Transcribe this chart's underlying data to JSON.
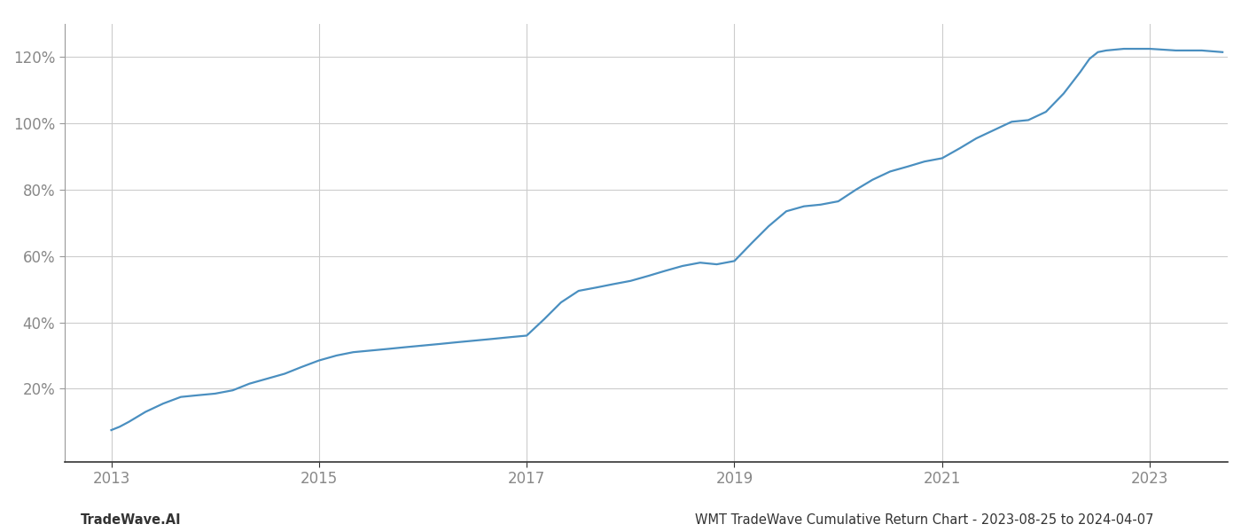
{
  "footer_left": "TradeWave.AI",
  "footer_right": "WMT TradeWave Cumulative Return Chart - 2023-08-25 to 2024-04-07",
  "line_color": "#4a8fc0",
  "line_width": 1.6,
  "background_color": "#ffffff",
  "grid_color": "#cccccc",
  "x_ticks": [
    2013,
    2015,
    2017,
    2019,
    2021,
    2023
  ],
  "y_ticks": [
    20,
    40,
    60,
    80,
    100,
    120
  ],
  "xlim": [
    2012.55,
    2023.75
  ],
  "ylim": [
    -2,
    130
  ],
  "x_data": [
    2013.0,
    2013.08,
    2013.17,
    2013.25,
    2013.33,
    2013.5,
    2013.67,
    2013.83,
    2014.0,
    2014.17,
    2014.33,
    2014.5,
    2014.67,
    2014.83,
    2015.0,
    2015.17,
    2015.33,
    2015.5,
    2015.67,
    2015.83,
    2016.0,
    2016.17,
    2016.33,
    2016.5,
    2016.67,
    2016.83,
    2017.0,
    2017.17,
    2017.33,
    2017.5,
    2017.67,
    2017.83,
    2018.0,
    2018.17,
    2018.33,
    2018.5,
    2018.67,
    2018.83,
    2019.0,
    2019.17,
    2019.33,
    2019.5,
    2019.67,
    2019.83,
    2020.0,
    2020.17,
    2020.33,
    2020.5,
    2020.67,
    2020.83,
    2021.0,
    2021.17,
    2021.33,
    2021.5,
    2021.67,
    2021.83,
    2022.0,
    2022.17,
    2022.33,
    2022.42,
    2022.5,
    2022.58,
    2022.75,
    2023.0,
    2023.25,
    2023.5,
    2023.7
  ],
  "y_data": [
    7.5,
    8.5,
    10.0,
    11.5,
    13.0,
    15.5,
    17.5,
    18.0,
    18.5,
    19.5,
    21.5,
    23.0,
    24.5,
    26.5,
    28.5,
    30.0,
    31.0,
    31.5,
    32.0,
    32.5,
    33.0,
    33.5,
    34.0,
    34.5,
    35.0,
    35.5,
    36.0,
    41.0,
    46.0,
    49.5,
    50.5,
    51.5,
    52.5,
    54.0,
    55.5,
    57.0,
    58.0,
    57.5,
    58.5,
    64.0,
    69.0,
    73.5,
    75.0,
    75.5,
    76.5,
    80.0,
    83.0,
    85.5,
    87.0,
    88.5,
    89.5,
    92.5,
    95.5,
    98.0,
    100.5,
    101.0,
    103.5,
    109.0,
    115.5,
    119.5,
    121.5,
    122.0,
    122.5,
    122.5,
    122.0,
    122.0,
    121.5
  ],
  "footer_fontsize": 10.5,
  "tick_fontsize": 12,
  "tick_color": "#888888",
  "footer_color": "#333333"
}
